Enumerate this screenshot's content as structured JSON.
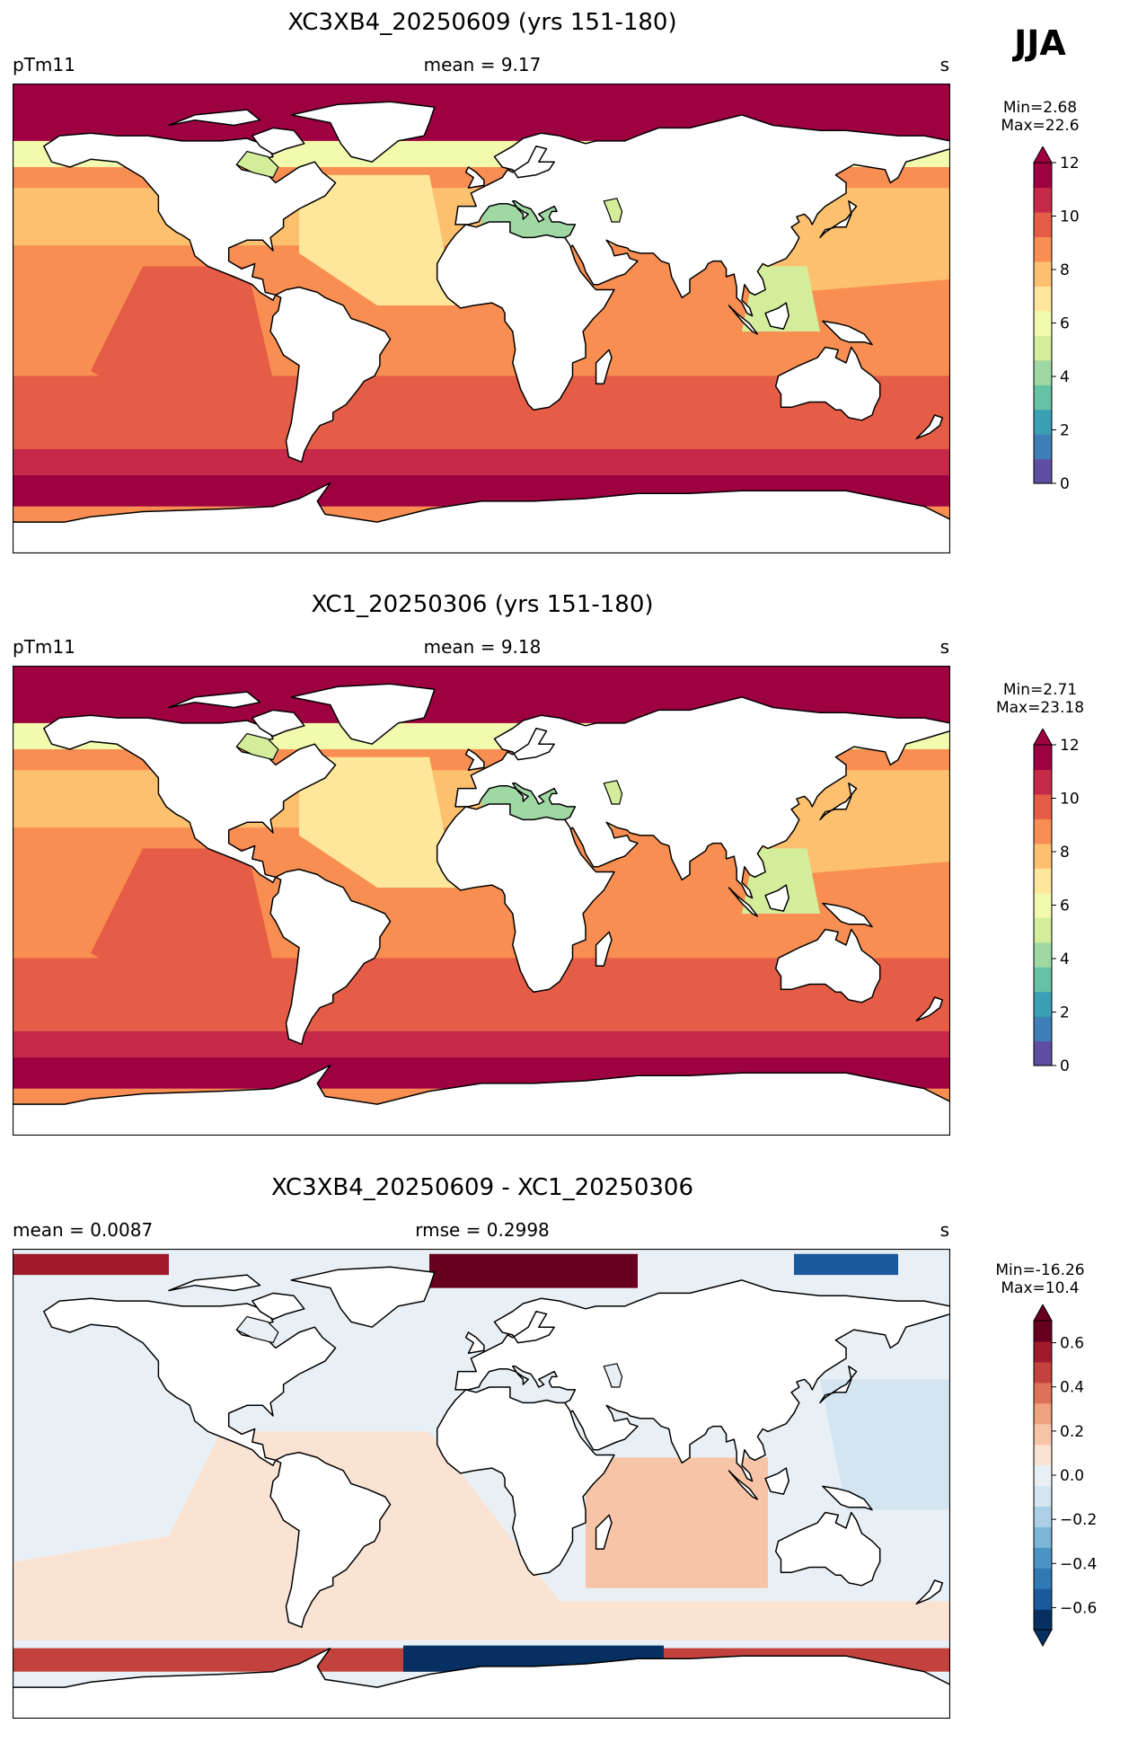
{
  "season": "JJA",
  "chart_data": [
    {
      "type": "heatmap",
      "title": "XC3XB4_20250609 (yrs 151-180)",
      "left_label": "pTm11",
      "center_label": "mean = 9.17",
      "right_label": "s",
      "min_label": "Min=2.68",
      "max_label": "Max=22.6",
      "colorbar": {
        "range": [
          0,
          12
        ],
        "ticks": [
          "0",
          "2",
          "4",
          "6",
          "8",
          "10",
          "12"
        ],
        "extend": "max",
        "colors": [
          "#5e4fa2",
          "#3f7fb8",
          "#3aa0b5",
          "#66c2a5",
          "#a0d8a4",
          "#d3ed9b",
          "#f2faad",
          "#fee69a",
          "#fdc06e",
          "#f88e52",
          "#e55d46",
          "#c62a48",
          "#9e0142"
        ]
      }
    },
    {
      "type": "heatmap",
      "title": "XC1_20250306 (yrs 151-180)",
      "left_label": "pTm11",
      "center_label": "mean = 9.18",
      "right_label": "s",
      "min_label": "Min=2.71",
      "max_label": "Max=23.18",
      "colorbar": {
        "range": [
          0,
          12
        ],
        "ticks": [
          "0",
          "2",
          "4",
          "6",
          "8",
          "10",
          "12"
        ],
        "extend": "max",
        "colors": [
          "#5e4fa2",
          "#3f7fb8",
          "#3aa0b5",
          "#66c2a5",
          "#a0d8a4",
          "#d3ed9b",
          "#f2faad",
          "#fee69a",
          "#fdc06e",
          "#f88e52",
          "#e55d46",
          "#c62a48",
          "#9e0142"
        ]
      }
    },
    {
      "type": "heatmap",
      "title": "XC3XB4_20250609 - XC1_20250306",
      "left_label": "mean = 0.0087",
      "center_label": "rmse = 0.2998",
      "right_label": "s",
      "min_label": "Min=-16.26",
      "max_label": "Max=10.4",
      "colorbar": {
        "range": [
          -0.7,
          0.7
        ],
        "ticks": [
          "−0.6",
          "−0.4",
          "−0.2",
          "0.0",
          "0.2",
          "0.4",
          "0.6"
        ],
        "extend": "both",
        "colors": [
          "#053061",
          "#1a5a9c",
          "#2f79b5",
          "#4a93c3",
          "#7bb5d7",
          "#abcfe5",
          "#d2e5f0",
          "#e8f0f5",
          "#fbe3d4",
          "#f8c4a8",
          "#f0a17e",
          "#de7259",
          "#c4423e",
          "#a11a2c",
          "#67001f"
        ]
      }
    }
  ]
}
